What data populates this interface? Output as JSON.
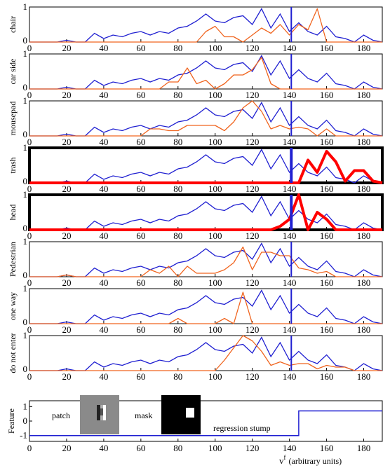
{
  "chart_data": {
    "type": "line",
    "x_ticks": [
      0,
      20,
      40,
      60,
      80,
      100,
      120,
      140,
      160,
      180
    ],
    "xlim": [
      0,
      190
    ],
    "xlabel": "v",
    "xlabel_sup": "f",
    "xlabel_suffix": "(arbitrary units)",
    "marker_x": 141,
    "colors": {
      "blue": "#1f1fd1",
      "orange": "#f0641e",
      "red": "#ff0000",
      "frame": "#000000"
    },
    "x": [
      0,
      5,
      10,
      15,
      20,
      25,
      30,
      35,
      40,
      45,
      50,
      55,
      60,
      65,
      70,
      75,
      80,
      85,
      90,
      95,
      100,
      105,
      110,
      115,
      120,
      125,
      130,
      135,
      140,
      145,
      150,
      155,
      160,
      165,
      170,
      175,
      180,
      185,
      190
    ],
    "blue_series": [
      0,
      0,
      0,
      0,
      0.05,
      0,
      0,
      0.25,
      0.1,
      0.2,
      0.15,
      0.25,
      0.3,
      0.2,
      0.3,
      0.25,
      0.4,
      0.45,
      0.6,
      0.8,
      0.6,
      0.55,
      0.7,
      0.75,
      0.5,
      0.95,
      0.4,
      0.8,
      0.3,
      0.55,
      0.3,
      0.2,
      0.45,
      0.15,
      0.1,
      0,
      0.2,
      0.05,
      0
    ],
    "panels": [
      {
        "label": "chair",
        "y_ticks": [
          "1",
          "0"
        ],
        "highlight": false,
        "orange": [
          0,
          0,
          0,
          0,
          0,
          0,
          0,
          0,
          0,
          0,
          0,
          0,
          0,
          0,
          0,
          0,
          0,
          0,
          0,
          0.3,
          0.45,
          0.15,
          0.15,
          0,
          0.2,
          0.4,
          0.25,
          0.5,
          0.2,
          0.5,
          0.35,
          0.95,
          0,
          0,
          0,
          0,
          0,
          0,
          0
        ]
      },
      {
        "label": "car side",
        "y_ticks": [
          "1",
          "0"
        ],
        "highlight": false,
        "orange": [
          0,
          0,
          0,
          0,
          0,
          0,
          0,
          0,
          0,
          0,
          0,
          0,
          0,
          0,
          0,
          0.2,
          0.2,
          0.6,
          0.15,
          0.25,
          0.0,
          0.15,
          0.4,
          0.4,
          0.55,
          0.9,
          0.15,
          0,
          0,
          0,
          0,
          0,
          0,
          0,
          0,
          0,
          0,
          0,
          0
        ]
      },
      {
        "label": "mousepad",
        "y_ticks": [
          "1",
          "0"
        ],
        "highlight": false,
        "orange": [
          0,
          0,
          0,
          0,
          0,
          0,
          0,
          0,
          0,
          0,
          0,
          0,
          0,
          0.2,
          0.2,
          0.15,
          0.15,
          0.3,
          0.3,
          0.3,
          0.3,
          0.15,
          0.4,
          0.8,
          1.0,
          0.7,
          0.2,
          0.3,
          0.2,
          0.25,
          0.2,
          0,
          0.2,
          0,
          0,
          0,
          0,
          0,
          0
        ]
      },
      {
        "label": "trash",
        "y_ticks": [
          "1",
          "0"
        ],
        "highlight": true,
        "orange": [
          0,
          0,
          0,
          0,
          0,
          0,
          0,
          0,
          0,
          0,
          0,
          0,
          0,
          0,
          0,
          0,
          0,
          0,
          0,
          0,
          0,
          0,
          0,
          0,
          0,
          0,
          0,
          0,
          0,
          0,
          0.65,
          0.3,
          0.9,
          0.6,
          0.05,
          0.35,
          0.35,
          0.05,
          0
        ]
      },
      {
        "label": "head",
        "y_ticks": [
          "1",
          "0"
        ],
        "highlight": true,
        "orange": [
          0,
          0,
          0,
          0,
          0,
          0,
          0,
          0,
          0,
          0,
          0,
          0,
          0,
          0,
          0,
          0,
          0,
          0,
          0,
          0,
          0,
          0,
          0,
          0,
          0,
          0,
          0,
          0.1,
          0.3,
          1.0,
          0.0,
          0.5,
          0.3,
          0.0,
          0,
          0,
          0,
          0,
          0
        ]
      },
      {
        "label": "Pedestrian",
        "y_ticks": [
          "1",
          "0"
        ],
        "highlight": false,
        "orange": [
          0,
          0,
          0,
          0,
          0.05,
          0,
          0,
          0,
          0,
          0,
          0,
          0,
          0,
          0.2,
          0.1,
          0.3,
          0,
          0.3,
          0.1,
          0.1,
          0.1,
          0.2,
          0.4,
          0.85,
          0.2,
          0.7,
          0.7,
          0.6,
          0.6,
          0.25,
          0.2,
          0.1,
          0.15,
          0,
          0,
          0,
          0,
          0,
          0
        ]
      },
      {
        "label": "one way",
        "y_ticks": [
          "1",
          "0"
        ],
        "highlight": false,
        "orange": [
          0,
          0,
          0,
          0,
          0,
          0,
          0,
          0,
          0,
          0,
          0,
          0,
          0,
          0,
          0,
          0,
          0.15,
          0,
          0,
          0,
          0,
          0.15,
          0,
          0.9,
          0,
          0,
          0,
          0,
          0,
          0,
          0,
          0,
          0,
          0,
          0,
          0,
          0,
          0,
          0
        ]
      },
      {
        "label": "do not enter",
        "y_ticks": [
          "1",
          "0"
        ],
        "highlight": false,
        "orange": [
          0,
          0,
          0,
          0,
          0,
          0,
          0,
          0,
          0,
          0,
          0,
          0,
          0,
          0,
          0,
          0,
          0,
          0,
          0,
          0,
          0,
          0.3,
          0.65,
          1.0,
          0.85,
          0.55,
          0.15,
          0.25,
          0.15,
          0.2,
          0.2,
          0.05,
          0.15,
          0.1,
          0.1,
          0,
          0,
          0,
          0
        ]
      }
    ],
    "feature_panel": {
      "label": "Feature",
      "y_ticks": [
        "1",
        "0",
        "-1"
      ],
      "ylim": [
        -1.4,
        1.4
      ],
      "stump": {
        "threshold": 145,
        "low": -1,
        "high": 0.7
      },
      "patch_label": "patch",
      "mask_label": "mask",
      "stump_label": "regression stump"
    }
  }
}
